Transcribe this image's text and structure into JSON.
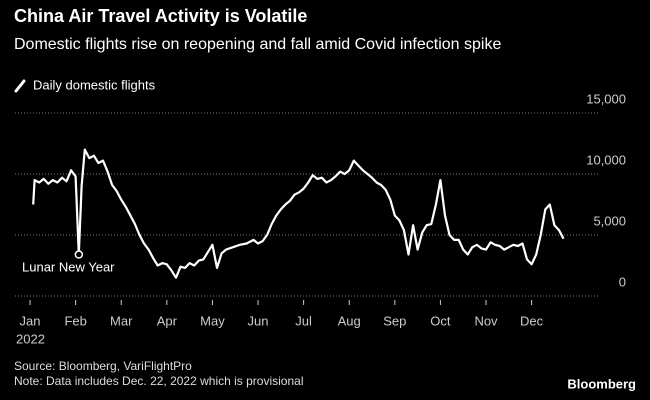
{
  "chart_data": {
    "type": "line",
    "title": "China Air Travel Activity is Volatile",
    "subtitle": "Domestic flights rise on reopening and fall amid Covid infection spike",
    "legend": "Daily domestic flights",
    "annotation": "Lunar New Year",
    "year_label": "2022",
    "source": "Source: Bloomberg, VariFlightPro",
    "note": "Note: Data includes Dec. 22, 2022 which is provisional",
    "brand": "Bloomberg",
    "grid": true,
    "series": [
      {
        "name": "Daily domestic flights",
        "color": "#ffffff",
        "x": [
          0.07,
          0.1,
          0.2,
          0.3,
          0.4,
          0.5,
          0.6,
          0.7,
          0.8,
          0.9,
          1.0,
          1.07,
          1.13,
          1.2,
          1.3,
          1.4,
          1.5,
          1.6,
          1.7,
          1.8,
          1.9,
          2.0,
          2.1,
          2.2,
          2.3,
          2.4,
          2.5,
          2.6,
          2.7,
          2.8,
          2.9,
          3.0,
          3.1,
          3.2,
          3.3,
          3.4,
          3.5,
          3.6,
          3.7,
          3.8,
          3.9,
          4.0,
          4.1,
          4.2,
          4.3,
          4.45,
          4.6,
          4.75,
          4.9,
          5.0,
          5.1,
          5.2,
          5.3,
          5.4,
          5.5,
          5.6,
          5.7,
          5.8,
          5.9,
          6.0,
          6.1,
          6.2,
          6.3,
          6.4,
          6.5,
          6.6,
          6.7,
          6.8,
          6.9,
          7.0,
          7.1,
          7.2,
          7.3,
          7.4,
          7.5,
          7.6,
          7.7,
          7.8,
          7.9,
          8.0,
          8.1,
          8.2,
          8.3,
          8.4,
          8.5,
          8.6,
          8.7,
          8.8,
          8.9,
          9.0,
          9.1,
          9.2,
          9.3,
          9.4,
          9.5,
          9.6,
          9.7,
          9.8,
          9.9,
          10.0,
          10.1,
          10.2,
          10.3,
          10.4,
          10.5,
          10.6,
          10.7,
          10.8,
          10.9,
          11.0,
          11.1,
          11.2,
          11.3,
          11.4,
          11.5,
          11.6,
          11.7
        ],
        "values": [
          7500,
          9500,
          9300,
          9600,
          9200,
          9500,
          9300,
          9700,
          9400,
          10300,
          9800,
          3400,
          9000,
          12000,
          11300,
          11500,
          10900,
          11100,
          10200,
          9100,
          8600,
          7900,
          7300,
          6600,
          5900,
          5000,
          4300,
          3800,
          3100,
          2500,
          2700,
          2600,
          2100,
          1500,
          2400,
          2300,
          2700,
          2500,
          2900,
          3000,
          3600,
          4200,
          2300,
          3500,
          3800,
          4000,
          4200,
          4300,
          4600,
          4300,
          4500,
          5000,
          5900,
          6600,
          7100,
          7500,
          7800,
          8300,
          8500,
          8800,
          9300,
          9900,
          9600,
          9700,
          9300,
          9500,
          9800,
          10200,
          10000,
          10300,
          11100,
          10700,
          10300,
          10000,
          9700,
          9300,
          9100,
          8700,
          7900,
          6600,
          6200,
          5400,
          3400,
          5800,
          3800,
          5200,
          5800,
          5900,
          7500,
          9500,
          6600,
          5000,
          4600,
          4600,
          3800,
          3400,
          4000,
          4200,
          3900,
          3800,
          4400,
          4200,
          4100,
          3800,
          4000,
          4200,
          4100,
          4300,
          3000,
          2600,
          3400,
          5000,
          7100,
          7500,
          5800,
          5400,
          4700
        ]
      }
    ],
    "xlim": [
      -0.33,
      12.5
    ],
    "xticks": [
      {
        "value": 0,
        "label": "Jan"
      },
      {
        "value": 1,
        "label": "Feb"
      },
      {
        "value": 2,
        "label": "Mar"
      },
      {
        "value": 3,
        "label": "Apr"
      },
      {
        "value": 4,
        "label": "May"
      },
      {
        "value": 5,
        "label": "Jun"
      },
      {
        "value": 6,
        "label": "Jul"
      },
      {
        "value": 7,
        "label": "Aug"
      },
      {
        "value": 8,
        "label": "Sep"
      },
      {
        "value": 9,
        "label": "Oct"
      },
      {
        "value": 10,
        "label": "Nov"
      },
      {
        "value": 11,
        "label": "Dec"
      }
    ],
    "ylim": [
      0,
      15000
    ],
    "yticks": [
      0,
      {
        "value": 5000,
        "label": "5,000"
      },
      {
        "value": 10000,
        "label": "10,000"
      },
      {
        "value": 15000,
        "label": "15,000"
      }
    ]
  }
}
